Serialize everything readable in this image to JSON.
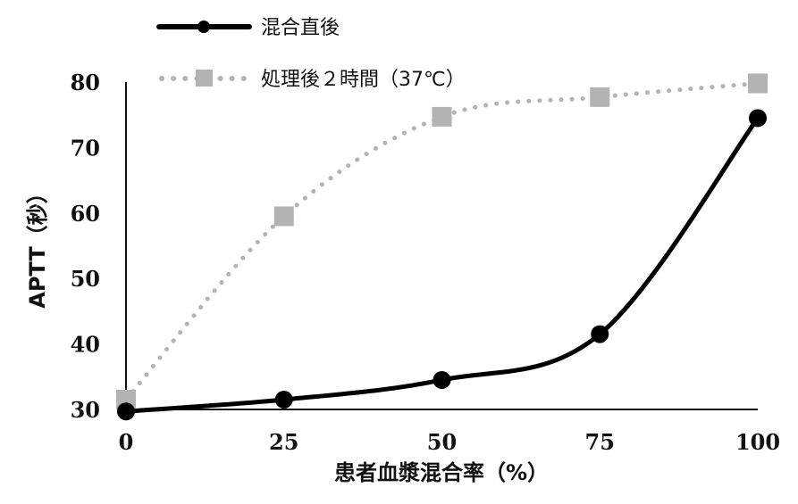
{
  "chart_data": {
    "type": "line",
    "x": [
      0,
      25,
      50,
      75,
      100
    ],
    "xlabel": "患者血漿混合率（%）",
    "ylabel": "APTT（秒）",
    "xlim": [
      0,
      100
    ],
    "ylim": [
      30,
      80
    ],
    "x_ticks": [
      "0",
      "25",
      "50",
      "75",
      "100"
    ],
    "y_ticks": [
      "30",
      "40",
      "50",
      "60",
      "70",
      "80"
    ],
    "grid": false,
    "legend_position": "top-left",
    "series": [
      {
        "name": "混合直後",
        "values": [
          29.7,
          31.5,
          34.5,
          41.5,
          74.5
        ],
        "color": "#000000",
        "line_style": "solid",
        "marker": "circle"
      },
      {
        "name": "処理後２時間（37℃）",
        "values": [
          31.5,
          59.5,
          74.7,
          77.7,
          79.8
        ],
        "color": "#b3b3b3",
        "line_style": "dotted",
        "marker": "square"
      }
    ]
  }
}
